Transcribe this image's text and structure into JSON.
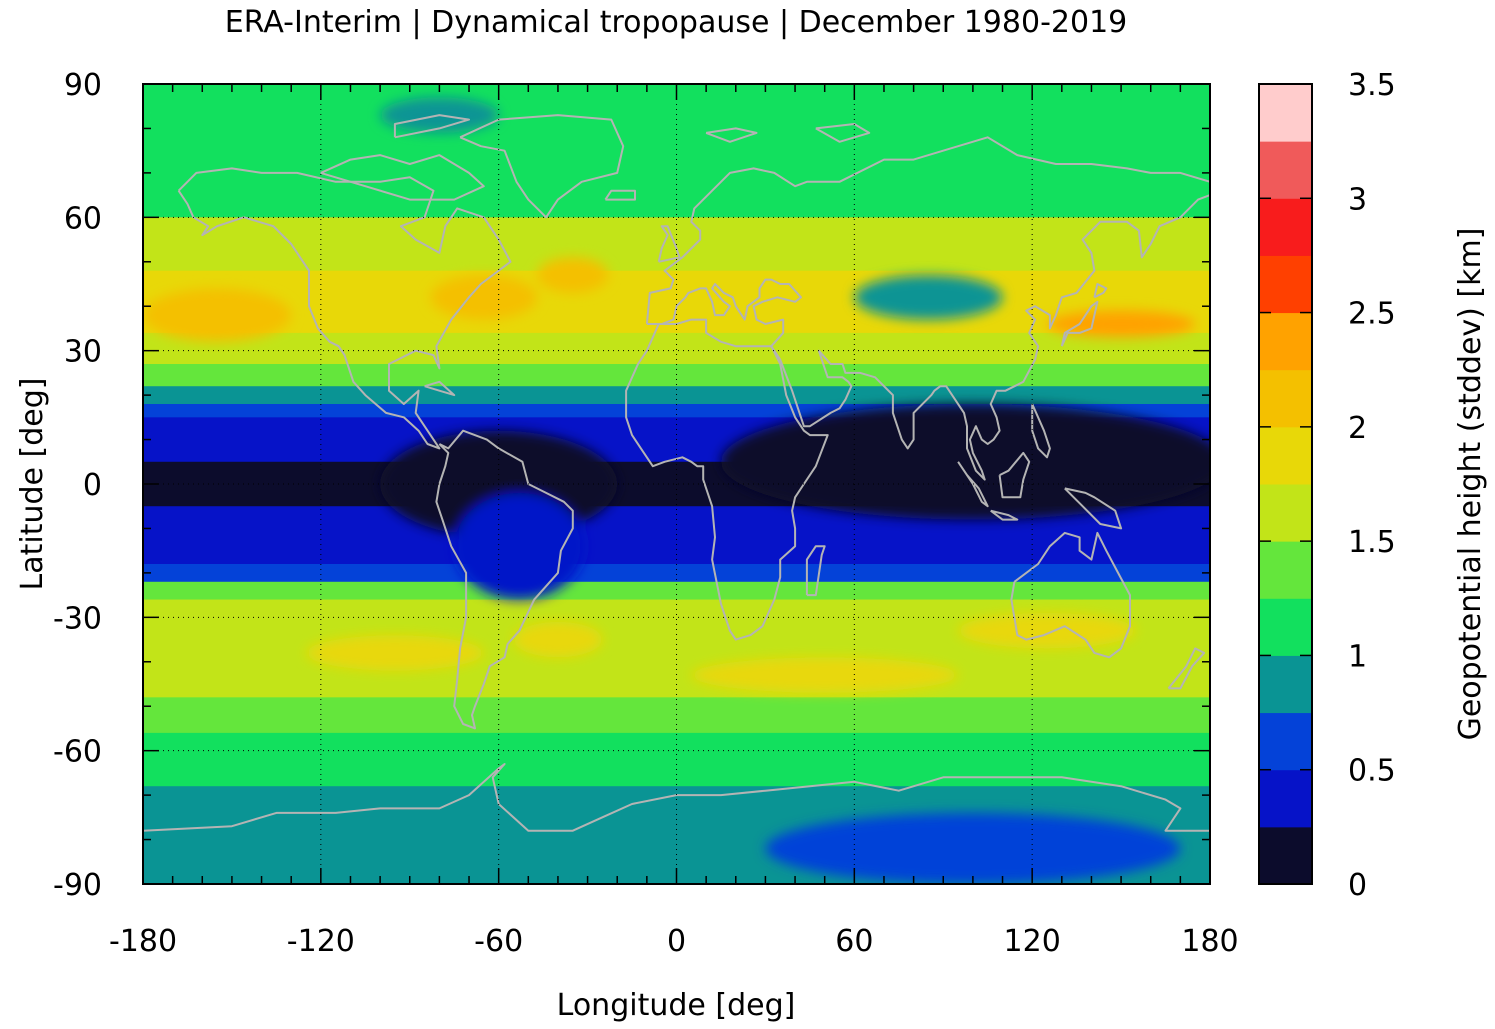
{
  "title": "ERA-Interim | Dynamical tropopause | December 1980-2019",
  "chart_data": {
    "type": "heatmap",
    "title": "ERA-Interim | Dynamical tropopause | December 1980-2019",
    "xlabel": "Longitude [deg]",
    "ylabel": "Latitude [deg]",
    "xlim": [
      -180,
      180
    ],
    "ylim": [
      -90,
      90
    ],
    "x_ticks": [
      "-180",
      "-120",
      "-60",
      "0",
      "60",
      "120",
      "180"
    ],
    "y_ticks": [
      "90",
      "60",
      "30",
      "0",
      "-30",
      "-60",
      "-90"
    ],
    "grid": true,
    "coastlines": true,
    "colorbar": {
      "label": "Geopotential height (stddev) [km]",
      "range": [
        0,
        3.5
      ],
      "ticks": [
        "3.5",
        "3",
        "2.5",
        "2",
        "1.5",
        "1",
        "0.5",
        "0"
      ],
      "levels": [
        {
          "from": 0.0,
          "to": 0.25,
          "color": "#0c0c2c"
        },
        {
          "from": 0.25,
          "to": 0.5,
          "color": "#0613c8"
        },
        {
          "from": 0.5,
          "to": 0.75,
          "color": "#0442d8"
        },
        {
          "from": 0.75,
          "to": 1.0,
          "color": "#0a9494"
        },
        {
          "from": 1.0,
          "to": 1.25,
          "color": "#12e05e"
        },
        {
          "from": 1.25,
          "to": 1.5,
          "color": "#64e63c"
        },
        {
          "from": 1.5,
          "to": 1.75,
          "color": "#c2e418"
        },
        {
          "from": 1.75,
          "to": 2.0,
          "color": "#e8d808"
        },
        {
          "from": 2.0,
          "to": 2.25,
          "color": "#f4c000"
        },
        {
          "from": 2.25,
          "to": 2.5,
          "color": "#ffa200"
        },
        {
          "from": 2.5,
          "to": 2.75,
          "color": "#ff4000"
        },
        {
          "from": 2.75,
          "to": 3.0,
          "color": "#f81c1c"
        },
        {
          "from": 3.0,
          "to": 3.25,
          "color": "#f05a5a"
        },
        {
          "from": 3.25,
          "to": 3.5,
          "color": "#ffcccc"
        }
      ]
    },
    "zonal_bands": [
      {
        "lat_from": 90,
        "lat_to": 75,
        "value": 1.1
      },
      {
        "lat_from": 75,
        "lat_to": 60,
        "value": 1.2
      },
      {
        "lat_from": 60,
        "lat_to": 48,
        "value": 1.5
      },
      {
        "lat_from": 48,
        "lat_to": 34,
        "value": 1.8
      },
      {
        "lat_from": 34,
        "lat_to": 27,
        "value": 1.6
      },
      {
        "lat_from": 27,
        "lat_to": 22,
        "value": 1.3
      },
      {
        "lat_from": 22,
        "lat_to": 18,
        "value": 0.9
      },
      {
        "lat_from": 18,
        "lat_to": 15,
        "value": 0.6
      },
      {
        "lat_from": 15,
        "lat_to": 5,
        "value": 0.4
      },
      {
        "lat_from": 5,
        "lat_to": -5,
        "value": 0.1
      },
      {
        "lat_from": -5,
        "lat_to": -18,
        "value": 0.4
      },
      {
        "lat_from": -18,
        "lat_to": -22,
        "value": 0.7
      },
      {
        "lat_from": -22,
        "lat_to": -26,
        "value": 1.3
      },
      {
        "lat_from": -26,
        "lat_to": -48,
        "value": 1.6
      },
      {
        "lat_from": -48,
        "lat_to": -56,
        "value": 1.4
      },
      {
        "lat_from": -56,
        "lat_to": -68,
        "value": 1.1
      },
      {
        "lat_from": -68,
        "lat_to": -90,
        "value": 0.9
      }
    ],
    "features": [
      {
        "shape": "ellipse",
        "lon": -155,
        "lat": 38,
        "rlon": 25,
        "rlat": 6,
        "value": 2.1
      },
      {
        "shape": "ellipse",
        "lon": -65,
        "lat": 42,
        "rlon": 18,
        "rlat": 5,
        "value": 2.0
      },
      {
        "shape": "ellipse",
        "lon": -35,
        "lat": 47,
        "rlon": 12,
        "rlat": 4,
        "value": 2.1
      },
      {
        "shape": "ellipse",
        "lon": 163,
        "lat": 36,
        "rlon": 12,
        "rlat": 1,
        "value": 2.6
      },
      {
        "shape": "ellipse",
        "lon": 150,
        "lat": 36,
        "rlon": 25,
        "rlat": 3,
        "value": 2.3
      },
      {
        "shape": "ellipse",
        "lon": 85,
        "lat": 42,
        "rlon": 25,
        "rlat": 5,
        "value": 0.85
      },
      {
        "shape": "ellipse",
        "lon": -80,
        "lat": 83,
        "rlon": 20,
        "rlat": 4,
        "value": 0.85
      },
      {
        "shape": "ellipse",
        "lon": 100,
        "lat": 5,
        "rlon": 85,
        "rlat": 13,
        "value": 0.1
      },
      {
        "shape": "ellipse",
        "lon": -60,
        "lat": 0,
        "rlon": 40,
        "rlat": 12,
        "value": 0.1
      },
      {
        "shape": "ellipse",
        "lon": -53,
        "lat": -14,
        "rlon": 22,
        "rlat": 12,
        "value": 0.4
      },
      {
        "shape": "ellipse",
        "lon": 100,
        "lat": -82,
        "rlon": 70,
        "rlat": 8,
        "value": 0.55
      },
      {
        "shape": "ellipse",
        "lon": -40,
        "lat": -35,
        "rlon": 15,
        "rlat": 4,
        "value": 1.8
      },
      {
        "shape": "ellipse",
        "lon": 50,
        "lat": -43,
        "rlon": 45,
        "rlat": 4,
        "value": 1.8
      },
      {
        "shape": "ellipse",
        "lon": 125,
        "lat": -33,
        "rlon": 30,
        "rlat": 4,
        "value": 1.8
      },
      {
        "shape": "ellipse",
        "lon": -95,
        "lat": -38,
        "rlon": 30,
        "rlat": 4,
        "value": 1.8
      }
    ]
  }
}
